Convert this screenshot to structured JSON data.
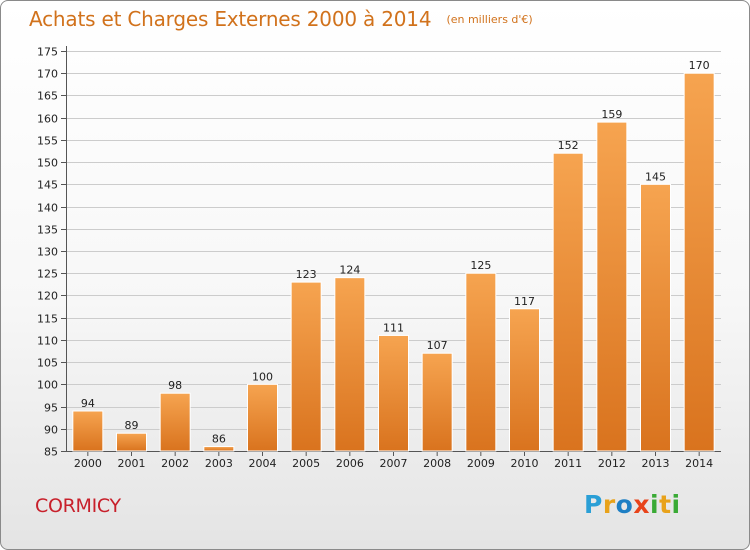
{
  "title": "Achats et Charges Externes 2000 à 2014",
  "subtitle": "(en milliers d'€)",
  "commune": "CORMICY",
  "logo": {
    "letters": [
      "P",
      "r",
      "o",
      "x",
      "i",
      "t",
      "i"
    ]
  },
  "colors": {
    "title": "#d1721c",
    "commune": "#c8202b",
    "bar_light": "#f6a450",
    "bar_dark": "#d9731e",
    "grid": "#cccccc"
  },
  "chart_data": {
    "type": "bar",
    "categories": [
      "2000",
      "2001",
      "2002",
      "2003",
      "2004",
      "2005",
      "2006",
      "2007",
      "2008",
      "2009",
      "2010",
      "2011",
      "2012",
      "2013",
      "2014"
    ],
    "values": [
      94,
      89,
      98,
      86,
      100,
      123,
      124,
      111,
      107,
      125,
      117,
      152,
      159,
      145,
      170
    ],
    "value_labels": [
      "94",
      "89",
      "98",
      "86",
      "100",
      "123",
      "124",
      "111",
      "107",
      "125",
      "117",
      "152",
      "159",
      "145",
      "170"
    ],
    "y_ticks": [
      "85",
      "90",
      "95",
      "100",
      "105",
      "110",
      "115",
      "120",
      "125",
      "130",
      "135",
      "140",
      "145",
      "150",
      "155",
      "160",
      "165",
      "170",
      "175"
    ],
    "ylim": [
      85,
      175
    ],
    "grid": true,
    "legend": "none"
  }
}
